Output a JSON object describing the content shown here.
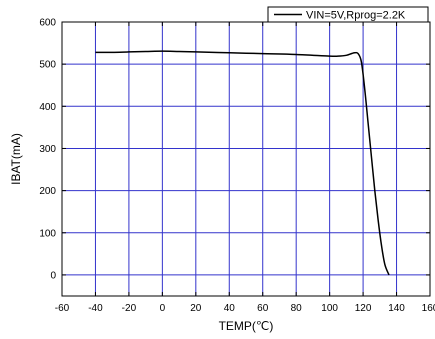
{
  "chart_data": {
    "type": "line",
    "title": "",
    "xlabel": "TEMP(℃)",
    "ylabel": "IBAT(mA)",
    "xlim": [
      -60,
      160
    ],
    "ylim": [
      -50,
      600
    ],
    "x_ticks": [
      -60,
      -40,
      -20,
      0,
      20,
      40,
      60,
      80,
      100,
      120,
      140,
      160
    ],
    "x_tick_labels": [
      "-60",
      "-40",
      "-20",
      "0",
      "20",
      "40",
      "60",
      "80",
      "100",
      "120",
      "140",
      "160"
    ],
    "y_ticks": [
      0,
      100,
      200,
      300,
      400,
      500,
      600
    ],
    "y_tick_labels": [
      "0",
      "100",
      "200",
      "300",
      "400",
      "500",
      "600"
    ],
    "grid": true,
    "grid_color": "#3333cc",
    "legend_position": "top-right",
    "series": [
      {
        "name": "VIN=5V,Rprog=2.2K",
        "color": "#000000",
        "x": [
          -40,
          -30,
          -20,
          -10,
          0,
          10,
          20,
          40,
          60,
          80,
          100,
          105,
          110,
          113,
          115,
          117,
          119,
          121,
          123,
          125,
          127,
          129,
          131,
          133,
          135.5
        ],
        "y": [
          528,
          528,
          529,
          530,
          531,
          530,
          529,
          527,
          525,
          523,
          519,
          519,
          521,
          525,
          527,
          525,
          505,
          440,
          360,
          280,
          200,
          130,
          70,
          25,
          0
        ]
      }
    ]
  }
}
